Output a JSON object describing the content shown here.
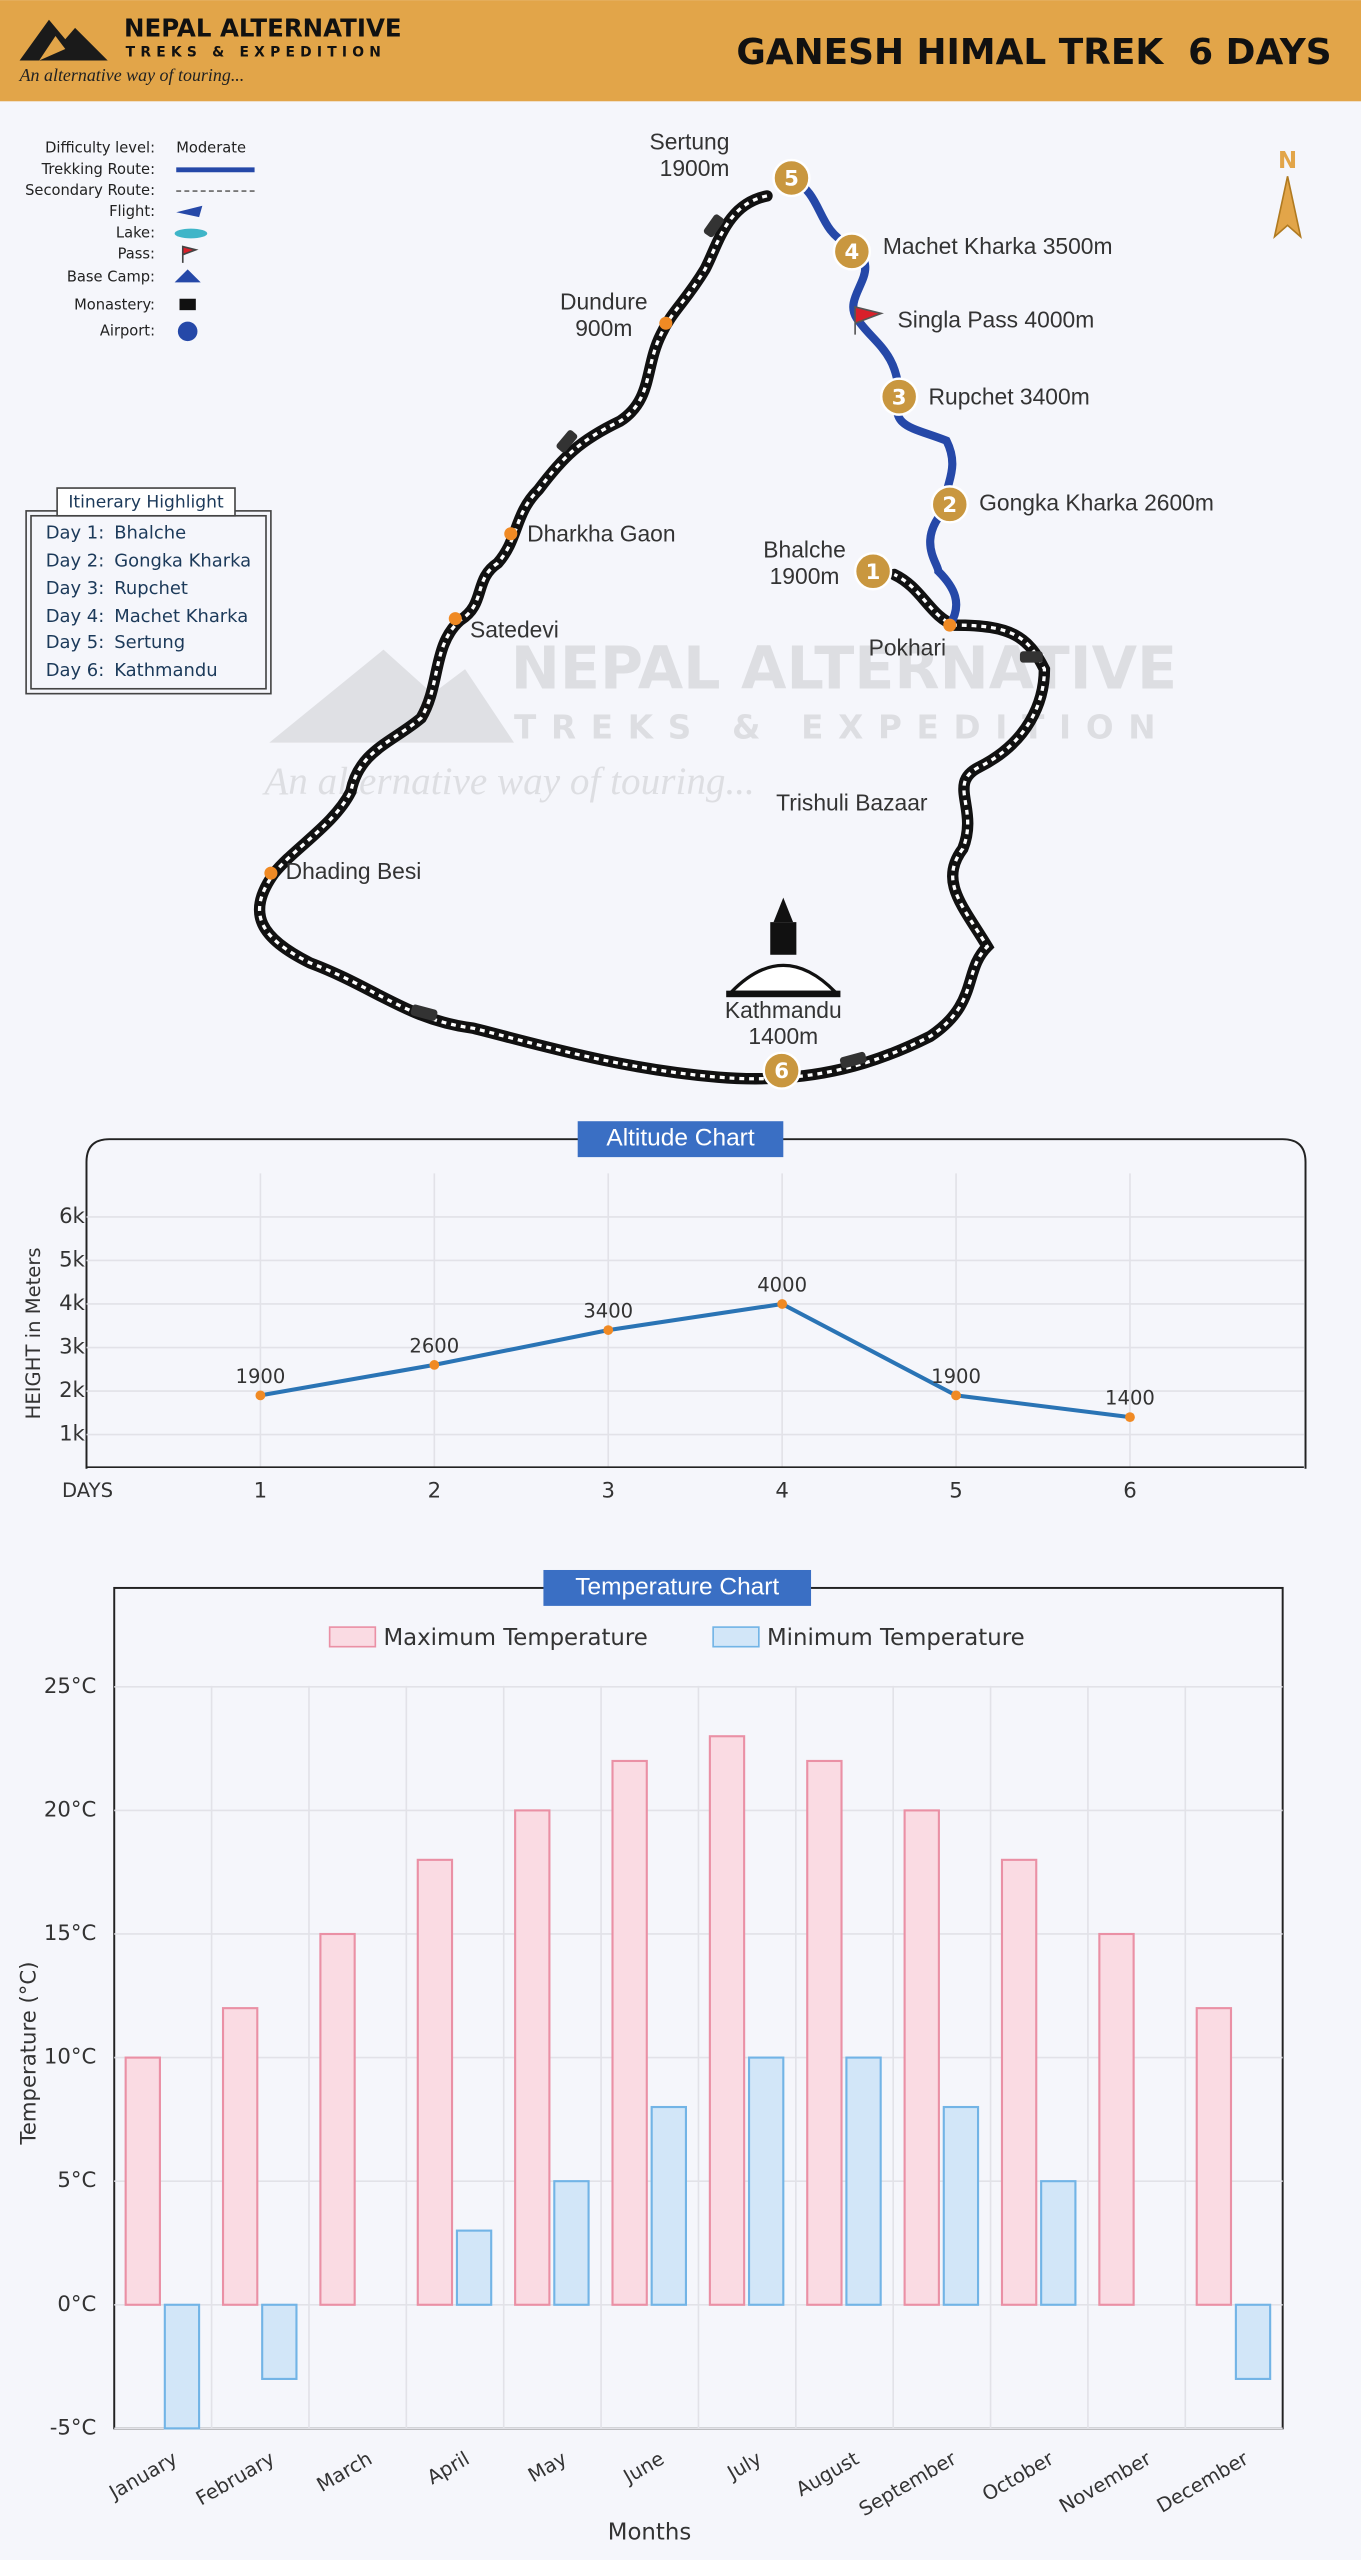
{
  "header": {
    "brand": "NEPAL ALTERNATIVE",
    "brand_sub": "TREKS & EXPEDITION",
    "tagline": "An alternative way of touring...",
    "title": "GANESH HIMAL TREK  6 DAYS"
  },
  "legend": {
    "difficulty_label": "Difficulty level:",
    "difficulty": "Moderate",
    "items": [
      "Trekking Route:",
      "Secondary Route:",
      "Flight:",
      "Lake:",
      "Pass:",
      "Base Camp:",
      "Monastery:",
      "Airport:"
    ]
  },
  "itinerary": {
    "title": "Itinerary Highlight",
    "days": [
      {
        "day": "Day 1:",
        "place": "Bhalche"
      },
      {
        "day": "Day 2:",
        "place": "Gongka Kharka"
      },
      {
        "day": "Day 3:",
        "place": "Rupchet"
      },
      {
        "day": "Day 4:",
        "place": "Machet Kharka"
      },
      {
        "day": "Day 5:",
        "place": "Sertung"
      },
      {
        "day": "Day 6:",
        "place": "Kathmandu"
      }
    ]
  },
  "map": {
    "compass": "N",
    "stops": [
      {
        "number": 5,
        "lines": [
          "Sertung",
          "1900m"
        ]
      },
      {
        "number": 4,
        "lines": [
          "Machet Kharka 3500m"
        ]
      },
      {
        "number": 3,
        "lines": [
          "Rupchet 3400m"
        ]
      },
      {
        "number": 2,
        "lines": [
          "Gongka Kharka 2600m"
        ]
      },
      {
        "number": 1,
        "lines": [
          "Bhalche",
          "1900m"
        ]
      },
      {
        "number": 6,
        "lines": [
          "Kathmandu",
          "1400m"
        ]
      }
    ],
    "pass": "Singla Pass 4000m",
    "places": [
      {
        "lines": [
          "Dundure",
          "900m"
        ]
      },
      {
        "lines": [
          "Dharkha Gaon"
        ]
      },
      {
        "lines": [
          "Satedevi"
        ]
      },
      {
        "lines": [
          "Dhading Besi"
        ]
      },
      {
        "lines": [
          "Pokhari"
        ]
      },
      {
        "lines": [
          "Trishuli Bazaar"
        ]
      }
    ]
  },
  "chart_data": [
    {
      "type": "line",
      "title": "Altitude Chart",
      "y_label": "HEIGHT in Meters",
      "x_label": "DAYS",
      "x": [
        1,
        2,
        3,
        4,
        5,
        6
      ],
      "values": [
        1900,
        2600,
        3400,
        4000,
        1900,
        1400
      ],
      "color": "#2a74b5",
      "marker_color": "#f08a24",
      "xlim": [
        0,
        7
      ],
      "xticks": [
        1,
        2,
        3,
        4,
        5,
        6
      ],
      "ylim": [
        250,
        7000
      ],
      "yticks": [
        {
          "value": 1000,
          "label": "1k"
        },
        {
          "value": 2000,
          "label": "2k"
        },
        {
          "value": 3000,
          "label": "3k"
        },
        {
          "value": 4000,
          "label": "4k"
        },
        {
          "value": 5000,
          "label": "5k"
        },
        {
          "value": 6000,
          "label": "6k"
        }
      ],
      "grid": true
    },
    {
      "type": "bar",
      "title": "Temperature Chart",
      "y_label": "Temperature (°C)",
      "x_label": "Months",
      "categories": [
        "January",
        "February",
        "March",
        "April",
        "May",
        "June",
        "July",
        "August",
        "September",
        "October",
        "November",
        "December"
      ],
      "series": [
        {
          "name": "Maximum Temperature",
          "color": "#fadbe3",
          "edge": "#ea90a5",
          "values": [
            10,
            12,
            15,
            18,
            20,
            22,
            23,
            22,
            20,
            18,
            15,
            12
          ]
        },
        {
          "name": "Minimum Temperature",
          "color": "#d2e6f8",
          "edge": "#72b4e6",
          "values": [
            -5,
            -3,
            0,
            3,
            5,
            8,
            10,
            10,
            8,
            5,
            0,
            -3
          ]
        }
      ],
      "ylim": [
        -5,
        29
      ],
      "yticks": [
        {
          "value": -5,
          "label": "-5°C"
        },
        {
          "value": 0,
          "label": "0°C"
        },
        {
          "value": 5,
          "label": "5°C"
        },
        {
          "value": 10,
          "label": "10°C"
        },
        {
          "value": 15,
          "label": "15°C"
        },
        {
          "value": 20,
          "label": "20°C"
        },
        {
          "value": 25,
          "label": "25°C"
        }
      ],
      "grid": true,
      "legend": "top"
    }
  ]
}
